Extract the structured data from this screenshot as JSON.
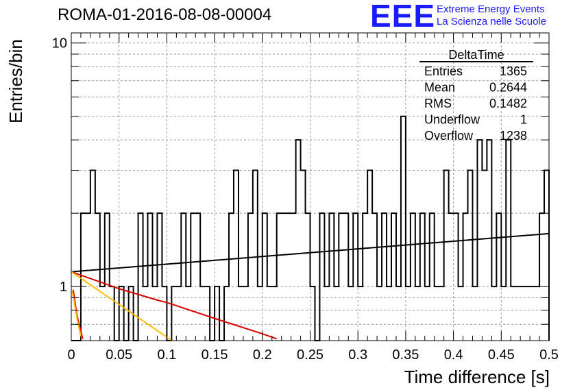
{
  "title": "ROMA-01-2016-08-08-00004",
  "logo": {
    "mark": "EEE",
    "line1": "Extreme Energy Events",
    "line2": "La Scienza nelle Scuole",
    "color": "#1a1aff"
  },
  "chart_data": {
    "type": "histogram",
    "xlabel": "Time difference [s]",
    "ylabel": "Entries/bin",
    "xlim": [
      0,
      0.5
    ],
    "ylim": [
      0.6,
      11
    ],
    "yscale": "log",
    "grid": true,
    "x_ticks": [
      "0",
      "0.05",
      "0.1",
      "0.15",
      "0.2",
      "0.25",
      "0.3",
      "0.35",
      "0.4",
      "0.45",
      "0.5"
    ],
    "y_ticks": [
      "1",
      "10"
    ],
    "bin_width": 0.005,
    "bins": [
      [
        0.01,
        2
      ],
      [
        0.015,
        2
      ],
      [
        0.02,
        3
      ],
      [
        0.025,
        2
      ],
      [
        0.03,
        1
      ],
      [
        0.035,
        2
      ],
      [
        0.04,
        1
      ],
      [
        0.05,
        1
      ],
      [
        0.06,
        1
      ],
      [
        0.07,
        2
      ],
      [
        0.075,
        1
      ],
      [
        0.08,
        2
      ],
      [
        0.085,
        1
      ],
      [
        0.09,
        2
      ],
      [
        0.095,
        1
      ],
      [
        0.105,
        1
      ],
      [
        0.11,
        1
      ],
      [
        0.115,
        2
      ],
      [
        0.12,
        1
      ],
      [
        0.125,
        2
      ],
      [
        0.13,
        2
      ],
      [
        0.135,
        1
      ],
      [
        0.14,
        1
      ],
      [
        0.15,
        1
      ],
      [
        0.16,
        1
      ],
      [
        0.165,
        2
      ],
      [
        0.17,
        3
      ],
      [
        0.175,
        1
      ],
      [
        0.18,
        1
      ],
      [
        0.185,
        2
      ],
      [
        0.19,
        3
      ],
      [
        0.195,
        1
      ],
      [
        0.2,
        2
      ],
      [
        0.205,
        1
      ],
      [
        0.21,
        1
      ],
      [
        0.215,
        2
      ],
      [
        0.22,
        2
      ],
      [
        0.225,
        2
      ],
      [
        0.23,
        2
      ],
      [
        0.235,
        4
      ],
      [
        0.24,
        3
      ],
      [
        0.245,
        2
      ],
      [
        0.25,
        1
      ],
      [
        0.26,
        2
      ],
      [
        0.265,
        1
      ],
      [
        0.27,
        2
      ],
      [
        0.275,
        1
      ],
      [
        0.28,
        2
      ],
      [
        0.285,
        2
      ],
      [
        0.29,
        1
      ],
      [
        0.295,
        2
      ],
      [
        0.3,
        1
      ],
      [
        0.305,
        2
      ],
      [
        0.31,
        3
      ],
      [
        0.315,
        2
      ],
      [
        0.32,
        1
      ],
      [
        0.325,
        2
      ],
      [
        0.33,
        1
      ],
      [
        0.335,
        2
      ],
      [
        0.34,
        1
      ],
      [
        0.345,
        5
      ],
      [
        0.35,
        1
      ],
      [
        0.355,
        2
      ],
      [
        0.36,
        1
      ],
      [
        0.365,
        2
      ],
      [
        0.37,
        1
      ],
      [
        0.375,
        2
      ],
      [
        0.38,
        1
      ],
      [
        0.385,
        1
      ],
      [
        0.39,
        3
      ],
      [
        0.395,
        2
      ],
      [
        0.4,
        2
      ],
      [
        0.405,
        1
      ],
      [
        0.41,
        2
      ],
      [
        0.415,
        3
      ],
      [
        0.42,
        1
      ],
      [
        0.425,
        4
      ],
      [
        0.43,
        3
      ],
      [
        0.435,
        4
      ],
      [
        0.44,
        1
      ],
      [
        0.445,
        2
      ],
      [
        0.45,
        1
      ],
      [
        0.455,
        4
      ],
      [
        0.46,
        1
      ],
      [
        0.465,
        1
      ],
      [
        0.47,
        1
      ],
      [
        0.475,
        1
      ],
      [
        0.48,
        1
      ],
      [
        0.485,
        1
      ],
      [
        0.49,
        2
      ],
      [
        0.495,
        3
      ]
    ],
    "fit_lines": [
      {
        "color": "#000000",
        "points": [
          [
            0.0,
            1.15
          ],
          [
            0.5,
            1.65
          ]
        ]
      },
      {
        "color": "#dd0000",
        "points": [
          [
            0.0,
            1.15
          ],
          [
            0.05,
            0.98
          ],
          [
            0.09,
            0.88
          ],
          [
            0.1,
            0.86
          ],
          [
            0.15,
            0.74
          ],
          [
            0.2,
            0.64
          ],
          [
            0.215,
            0.61
          ]
        ]
      },
      {
        "color": "#ffbb00",
        "points": [
          [
            0.0,
            1.15
          ],
          [
            0.1,
            0.62
          ],
          [
            0.105,
            0.6
          ]
        ]
      },
      {
        "color": "#dd0000",
        "points": [
          [
            0.002,
            0.97
          ],
          [
            0.006,
            0.76
          ],
          [
            0.012,
            0.61
          ]
        ]
      },
      {
        "color": "#ffbb00",
        "points": [
          [
            0.001,
            0.96
          ],
          [
            0.006,
            0.74
          ],
          [
            0.011,
            0.6
          ]
        ]
      }
    ],
    "stats": {
      "name": "DeltaTime",
      "rows": [
        {
          "label": "Entries",
          "value": "1365"
        },
        {
          "label": "Mean",
          "value": "0.2644"
        },
        {
          "label": "RMS",
          "value": "0.1482"
        },
        {
          "label": "Underflow",
          "value": "1"
        },
        {
          "label": "Overflow",
          "value": "1238"
        }
      ]
    }
  }
}
